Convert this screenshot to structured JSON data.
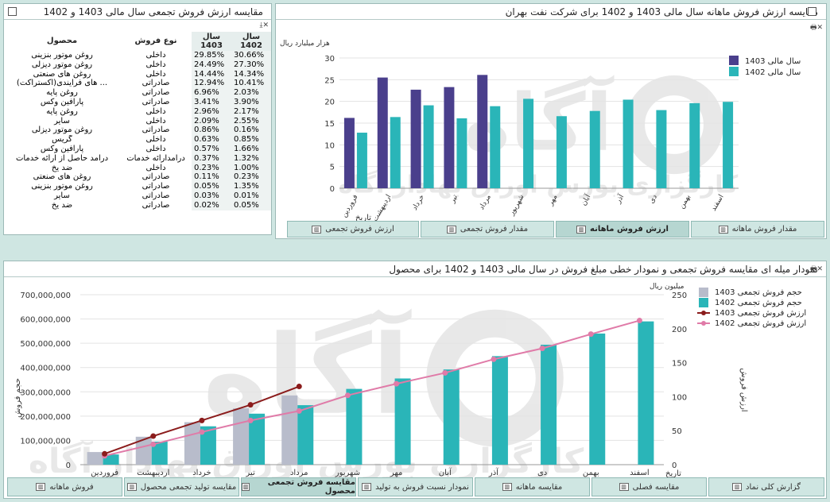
{
  "table_panel": {
    "title": "مقایسه ارزش فروش تجمعی سال مالی 1403 و 1402",
    "headers": {
      "product": "محصول",
      "sale_type": "نوع فروش",
      "y1403": "سال 1403",
      "y1402": "سال 1402"
    },
    "rows": [
      {
        "product": "روغن موتور بنزینی",
        "type": "داخلی",
        "y1403": "29.85%",
        "y1402": "30.66%"
      },
      {
        "product": "روغن موتور دیزلی",
        "type": "داخلی",
        "y1403": "24.49%",
        "y1402": "27.30%"
      },
      {
        "product": "روغن های صنعتی",
        "type": "داخلی",
        "y1403": "14.44%",
        "y1402": "14.34%"
      },
      {
        "product": "... های فرایندی(اکستراکت)",
        "type": "صادراتی",
        "y1403": "12.94%",
        "y1402": "10.41%"
      },
      {
        "product": "روغن پایه",
        "type": "صادراتی",
        "y1403": "6.96%",
        "y1402": "2.03%"
      },
      {
        "product": "پارافین وکس",
        "type": "صادراتی",
        "y1403": "3.41%",
        "y1402": "3.90%"
      },
      {
        "product": "روغن پایه",
        "type": "داخلی",
        "y1403": "2.96%",
        "y1402": "2.17%"
      },
      {
        "product": "سایر",
        "type": "داخلی",
        "y1403": "2.09%",
        "y1402": "2.55%"
      },
      {
        "product": "روغن موتور دیزلی",
        "type": "صادراتی",
        "y1403": "0.86%",
        "y1402": "0.16%"
      },
      {
        "product": "گریس",
        "type": "داخلی",
        "y1403": "0.63%",
        "y1402": "0.85%"
      },
      {
        "product": "پارافین وکس",
        "type": "داخلی",
        "y1403": "0.57%",
        "y1402": "1.66%"
      },
      {
        "product": "درآمد حاصل از ارائه خدمات",
        "type": "درآمدارائه خدمات",
        "y1403": "0.37%",
        "y1402": "1.32%"
      },
      {
        "product": "ضد یخ",
        "type": "داخلی",
        "y1403": "0.23%",
        "y1402": "1.00%"
      },
      {
        "product": "روغن های صنعتی",
        "type": "صادراتی",
        "y1403": "0.11%",
        "y1402": "0.23%"
      },
      {
        "product": "روغن موتور بنزینی",
        "type": "صادراتی",
        "y1403": "0.05%",
        "y1402": "1.35%"
      },
      {
        "product": "سایر",
        "type": "صادراتی",
        "y1403": "0.03%",
        "y1402": "0.01%"
      },
      {
        "product": "ضد یخ",
        "type": "صادراتی",
        "y1403": "0.02%",
        "y1402": "0.05%"
      }
    ]
  },
  "monthly_panel": {
    "title": "مقایسه ارزش فروش ماهانه سال مالی 1403 و 1402 برای شرکت نفت بهران",
    "tabs": [
      "مقدار فروش ماهانه",
      "ارزش فروش ماهانه",
      "مقدار فروش تجمعی",
      "ارزش فروش تجمعی"
    ],
    "active_tab": 1
  },
  "cumulative_panel": {
    "title": "نمودار میله ای مقایسه فروش تجمعی و نمودار خطی مبلغ فروش در سال مالی 1403 و 1402 برای محصول",
    "tabs": [
      "گزارش کلی نماد",
      "مقایسه فصلی",
      "مقایسه ماهانه",
      "نمودار نسبت فروش به تولید",
      "مقایسه فروش تجمعی محصول",
      "مقایسه تولید تجمعی محصول",
      "فروش ماهانه"
    ],
    "active_tab": 4
  },
  "watermark": "آگاه",
  "watermark_sub": "کارگزاری بورس اوراق بهادار آگاه",
  "colors": {
    "y1403_bar": "#4a3f8c",
    "y1402_bar": "#2ab5b8",
    "cum1403_bar": "#b8bccb",
    "cum1402_bar": "#2ab5b8",
    "line1403": "#8b1c1c",
    "line1402": "#e07ba8"
  },
  "chart_data": [
    {
      "type": "bar",
      "title": "مقایسه ارزش فروش ماهانه سال مالی 1403 و 1402 برای شرکت نفت بهران",
      "categories": [
        "فروردین",
        "اردیبهشت",
        "خرداد",
        "تیر",
        "مرداد",
        "شهریور",
        "مهر",
        "آبان",
        "آذر",
        "دی",
        "بهمن",
        "اسفند"
      ],
      "series": [
        {
          "name": "سال مالی 1403",
          "values": [
            16.2,
            25.5,
            22.7,
            23.3,
            26.1,
            null,
            null,
            null,
            null,
            null,
            null,
            null
          ]
        },
        {
          "name": "سال مالی 1402",
          "values": [
            12.8,
            16.4,
            19.1,
            16.1,
            18.9,
            20.6,
            16.6,
            17.8,
            20.4,
            18,
            19.6,
            19.9
          ]
        }
      ],
      "ylabel": "هزار میلیارد ریال",
      "xlabel": "تاریخ",
      "ylim": [
        0,
        30
      ],
      "yticks": [
        0,
        5,
        10,
        15,
        20,
        25,
        30
      ],
      "legend": "top-right",
      "grid": true
    },
    {
      "type": "bar",
      "title": "نمودار میله ای مقایسه فروش تجمعی و نمودار خطی مبلغ فروش در سال مالی 1403 و 1402 برای محصول",
      "categories": [
        "فروردین",
        "اردیبهشت",
        "خرداد",
        "تیر",
        "مرداد",
        "شهریور",
        "مهر",
        "آبان",
        "آذر",
        "دی",
        "بهمن",
        "اسفند"
      ],
      "series": [
        {
          "name": "حجم فروش تجمعی 1403",
          "kind": "bar",
          "axis": "left",
          "values": [
            52000000,
            115000000,
            175000000,
            232000000,
            285000000,
            null,
            null,
            null,
            null,
            null,
            null,
            null
          ]
        },
        {
          "name": "حجم فروش تجمعی 1402",
          "kind": "bar",
          "axis": "left",
          "values": [
            42000000,
            95000000,
            158000000,
            210000000,
            245000000,
            312000000,
            355000000,
            392000000,
            447000000,
            494000000,
            540000000,
            590000000
          ]
        },
        {
          "name": "ارزش فروش تجمعی 1403",
          "kind": "line",
          "axis": "right",
          "values": [
            16,
            42,
            65,
            88,
            115,
            null,
            null,
            null,
            null,
            null,
            null,
            null
          ]
        },
        {
          "name": "ارزش فروش تجمعی 1402",
          "kind": "line",
          "axis": "right",
          "values": [
            13,
            30,
            48,
            65,
            79,
            102,
            119,
            135,
            155,
            171,
            192,
            212
          ]
        }
      ],
      "ylabel_left": "حجم فروش",
      "ylabel_right": "ارزش فروش",
      "right_unit": "میلیون ریال",
      "xlabel": "تاریخ",
      "ylim_left": [
        0,
        700000000
      ],
      "yticks_left": [
        "0",
        "100,000,000",
        "200,000,000",
        "300,000,000",
        "400,000,000",
        "500,000,000",
        "600,000,000",
        "700,000,000"
      ],
      "ylim_right": [
        0,
        250
      ],
      "yticks_right": [
        0,
        50,
        100,
        150,
        200,
        250
      ],
      "legend": "top-right",
      "grid": true
    }
  ]
}
